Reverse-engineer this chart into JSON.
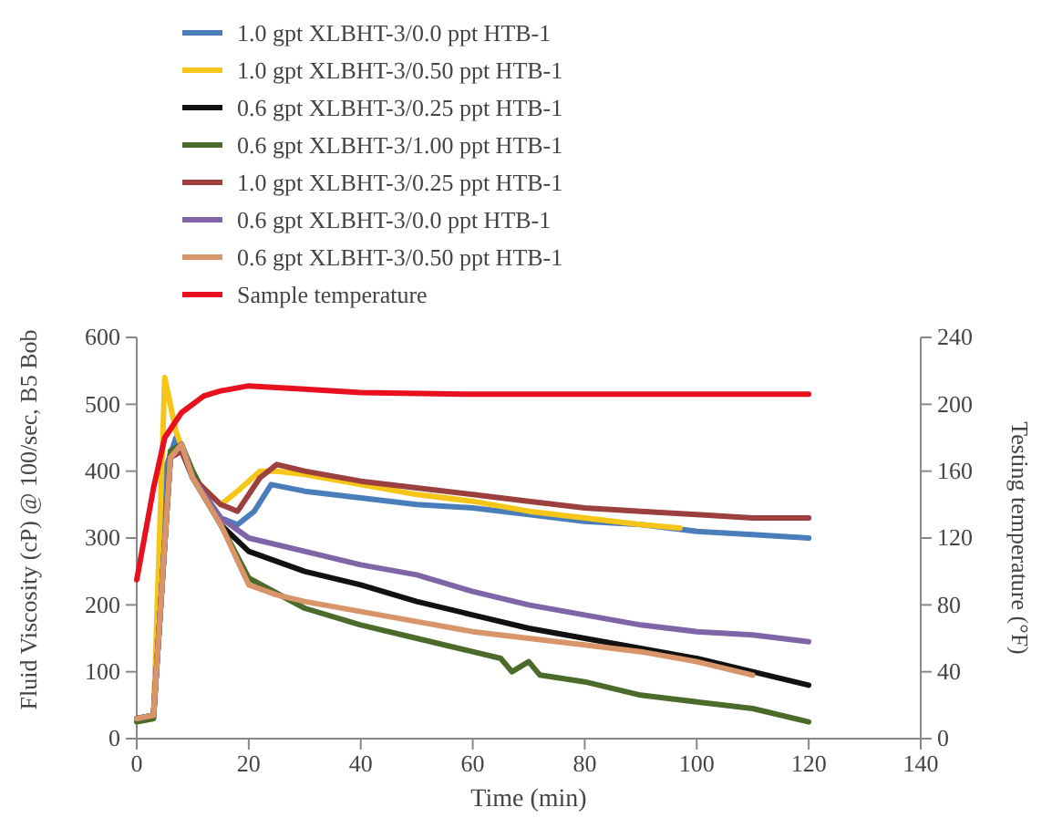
{
  "chart_data": {
    "type": "line",
    "xlabel": "Time (min)",
    "ylabel": "Fluid Viscosity (cP) @ 100/sec, B5 Bob",
    "y2label": "Testing temperature (°F)",
    "xlim": [
      0,
      140
    ],
    "xticks": [
      0,
      20,
      40,
      60,
      80,
      100,
      120,
      140
    ],
    "ylim": [
      0,
      600
    ],
    "yticks": [
      0,
      100,
      200,
      300,
      400,
      500,
      600
    ],
    "y2lim": [
      0,
      240
    ],
    "y2ticks": [
      0,
      40,
      80,
      120,
      160,
      200,
      240
    ],
    "legend": "top left",
    "grid": false,
    "series": [
      {
        "name": "1.0 gpt XLBHT-3/0.0 ppt HTB-1",
        "color": "#4a7ebb",
        "x": [
          0,
          3,
          5,
          7,
          10,
          15,
          18,
          21,
          24,
          30,
          40,
          50,
          60,
          70,
          80,
          90,
          100,
          110,
          120
        ],
        "values": [
          30,
          35,
          400,
          450,
          390,
          330,
          320,
          340,
          380,
          370,
          360,
          350,
          345,
          335,
          325,
          320,
          310,
          305,
          300
        ]
      },
      {
        "name": "1.0 gpt XLBHT-3/0.50 ppt HTB-1",
        "color": "#f5c518",
        "x": [
          0,
          3,
          5,
          7,
          10,
          15,
          18,
          22,
          25,
          30,
          40,
          50,
          60,
          70,
          80,
          90,
          97
        ],
        "values": [
          25,
          30,
          540,
          460,
          390,
          350,
          370,
          400,
          400,
          395,
          380,
          365,
          355,
          340,
          330,
          320,
          315
        ]
      },
      {
        "name": "0.6 gpt XLBHT-3/0.25 ppt HTB-1",
        "color": "#111111",
        "x": [
          0,
          3,
          6,
          8,
          10,
          15,
          20,
          30,
          40,
          50,
          60,
          70,
          80,
          90,
          100,
          110,
          120
        ],
        "values": [
          30,
          35,
          420,
          440,
          390,
          320,
          280,
          250,
          230,
          205,
          185,
          165,
          150,
          135,
          120,
          100,
          80
        ]
      },
      {
        "name": "0.6 gpt XLBHT-3/1.00 ppt HTB-1",
        "color": "#4a6b2a",
        "x": [
          0,
          3,
          6,
          8,
          10,
          15,
          20,
          30,
          40,
          50,
          60,
          65,
          67,
          70,
          72,
          80,
          90,
          100,
          110,
          120
        ],
        "values": [
          25,
          30,
          430,
          440,
          400,
          320,
          240,
          195,
          170,
          150,
          130,
          120,
          100,
          115,
          95,
          85,
          65,
          55,
          45,
          25
        ]
      },
      {
        "name": "1.0 gpt XLBHT-3/0.25 ppt HTB-1",
        "color": "#9b3f3f",
        "x": [
          0,
          3,
          6,
          8,
          10,
          15,
          18,
          22,
          25,
          30,
          40,
          50,
          60,
          70,
          80,
          90,
          100,
          110,
          120
        ],
        "values": [
          30,
          35,
          420,
          430,
          390,
          350,
          340,
          390,
          410,
          400,
          385,
          375,
          365,
          355,
          345,
          340,
          335,
          330,
          330
        ]
      },
      {
        "name": "0.6 gpt XLBHT-3/0.0 ppt HTB-1",
        "color": "#7f64a8",
        "x": [
          0,
          3,
          6,
          8,
          10,
          15,
          20,
          30,
          40,
          50,
          60,
          70,
          80,
          90,
          100,
          110,
          120
        ],
        "values": [
          30,
          35,
          420,
          440,
          390,
          330,
          300,
          280,
          260,
          245,
          220,
          200,
          185,
          170,
          160,
          155,
          145
        ]
      },
      {
        "name": "0.6 gpt XLBHT-3/0.50 ppt HTB-1",
        "color": "#d9956a",
        "x": [
          0,
          3,
          6,
          8,
          10,
          15,
          20,
          25,
          30,
          40,
          50,
          60,
          70,
          80,
          90,
          100,
          110
        ],
        "values": [
          30,
          35,
          420,
          440,
          390,
          320,
          230,
          215,
          205,
          190,
          175,
          160,
          150,
          140,
          130,
          115,
          95
        ]
      },
      {
        "name": "Sample temperature",
        "color": "#e8101e",
        "axis": "y2",
        "x": [
          0,
          3,
          5,
          8,
          12,
          15,
          20,
          30,
          40,
          60,
          80,
          100,
          120
        ],
        "values": [
          95,
          150,
          180,
          195,
          205,
          208,
          211,
          209,
          207,
          206,
          206,
          206,
          206
        ]
      }
    ]
  }
}
